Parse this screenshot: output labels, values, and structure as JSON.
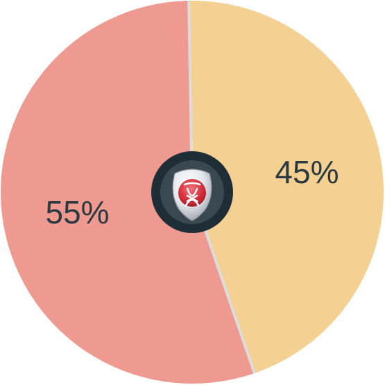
{
  "chart_data": {
    "type": "pie",
    "title": "",
    "start_angle_deg": -1,
    "slices": [
      {
        "label": "45%",
        "value": 45,
        "color": "#F4D092"
      },
      {
        "label": "55%",
        "value": 55,
        "color": "#EF9A91"
      }
    ],
    "separator_color": "#DCDCDC",
    "center_badge": {
      "ring_color": "#1F2E36",
      "icon": "red-crest-emblem-icon",
      "emblem_color": "#D5303C"
    }
  }
}
